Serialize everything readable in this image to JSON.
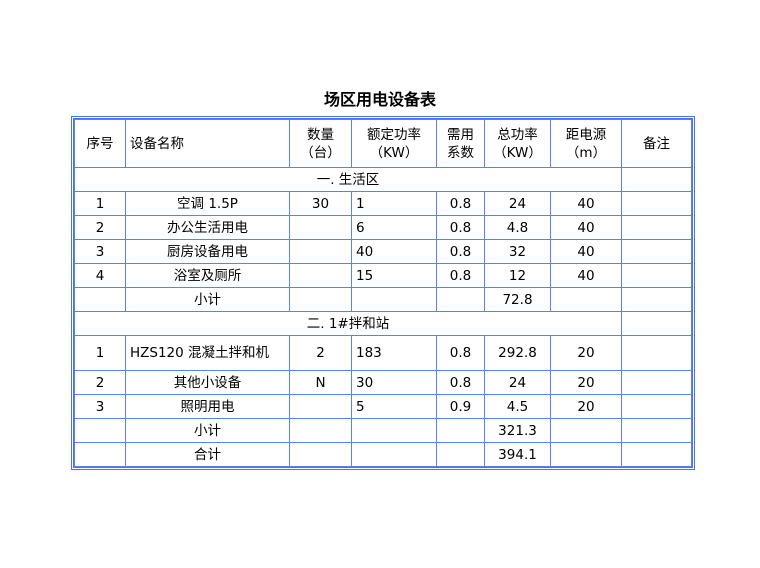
{
  "title": "场区用电设备表",
  "headers": {
    "no": "序号",
    "name": "设备名称",
    "qty": [
      "数量",
      "（台）"
    ],
    "rated": [
      "额定功率",
      "（KW）"
    ],
    "coef": [
      "需用",
      "系数"
    ],
    "total": [
      "总功率",
      "（KW）"
    ],
    "dist": [
      "距电源",
      "（m）"
    ],
    "note": "备注"
  },
  "sections": [
    {
      "label": "一.  生活区",
      "rows": [
        {
          "no": "1",
          "name": "空调 1.5P",
          "qty": "30",
          "rated": "1",
          "coef": "0.8",
          "total": "24",
          "dist": "40"
        },
        {
          "no": "2",
          "name": "办公生活用电",
          "qty": "",
          "rated": "6",
          "coef": "0.8",
          "total": "4.8",
          "dist": "40"
        },
        {
          "no": "3",
          "name": "厨房设备用电",
          "qty": "",
          "rated": "40",
          "coef": "0.8",
          "total": "32",
          "dist": "40"
        },
        {
          "no": "4",
          "name": "浴室及厕所",
          "qty": "",
          "rated": "15",
          "coef": "0.8",
          "total": "12",
          "dist": "40"
        }
      ],
      "subtotal": {
        "label": "小计",
        "total": "72.8"
      }
    },
    {
      "label": "二. 1#拌和站",
      "rows": [
        {
          "no": "1",
          "name": "HZS120 混凝土拌和机",
          "qty": "2",
          "rated": "183",
          "coef": "0.8",
          "total": "292.8",
          "dist": "20"
        },
        {
          "no": "2",
          "name": "其他小设备",
          "qty": "N",
          "rated": "30",
          "coef": "0.8",
          "total": "24",
          "dist": "20"
        },
        {
          "no": "3",
          "name": "照明用电",
          "qty": "",
          "rated": "5",
          "coef": "0.9",
          "total": "4.5",
          "dist": "20"
        }
      ],
      "subtotal": {
        "label": "小计",
        "total": "321.3"
      }
    }
  ],
  "grand_total": {
    "label": "合计",
    "total": "394.1"
  }
}
